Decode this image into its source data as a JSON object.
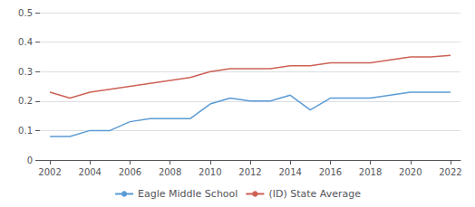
{
  "chart_data": {
    "type": "line",
    "x": [
      2002,
      2003,
      2004,
      2005,
      2006,
      2007,
      2008,
      2009,
      2010,
      2011,
      2012,
      2013,
      2014,
      2015,
      2016,
      2017,
      2018,
      2019,
      2020,
      2021,
      2022
    ],
    "series": [
      {
        "name": "Eagle Middle School",
        "color": "#5b9bd5",
        "values": [
          0.08,
          0.08,
          0.1,
          0.1,
          0.13,
          0.14,
          0.14,
          0.14,
          0.19,
          0.21,
          0.2,
          0.2,
          0.22,
          0.17,
          0.21,
          0.21,
          0.21,
          0.22,
          0.23,
          0.23,
          0.23
        ]
      },
      {
        "name": "(ID) State Average",
        "color": "#cd6155",
        "values": [
          0.23,
          0.21,
          0.23,
          0.24,
          0.25,
          0.26,
          0.27,
          0.28,
          0.3,
          0.31,
          0.31,
          0.31,
          0.32,
          0.32,
          0.33,
          0.33,
          0.33,
          0.34,
          0.35,
          0.35,
          0.355
        ]
      }
    ],
    "xlim": [
      2001.5,
      2022.5
    ],
    "xticks": [
      2002,
      2004,
      2006,
      2008,
      2010,
      2012,
      2014,
      2016,
      2018,
      2020,
      2022
    ],
    "ylim": [
      0,
      0.5
    ],
    "yticks": [
      0,
      0.1,
      0.2,
      0.3,
      0.4,
      0.5
    ],
    "grid": true,
    "legend": "bottom"
  }
}
